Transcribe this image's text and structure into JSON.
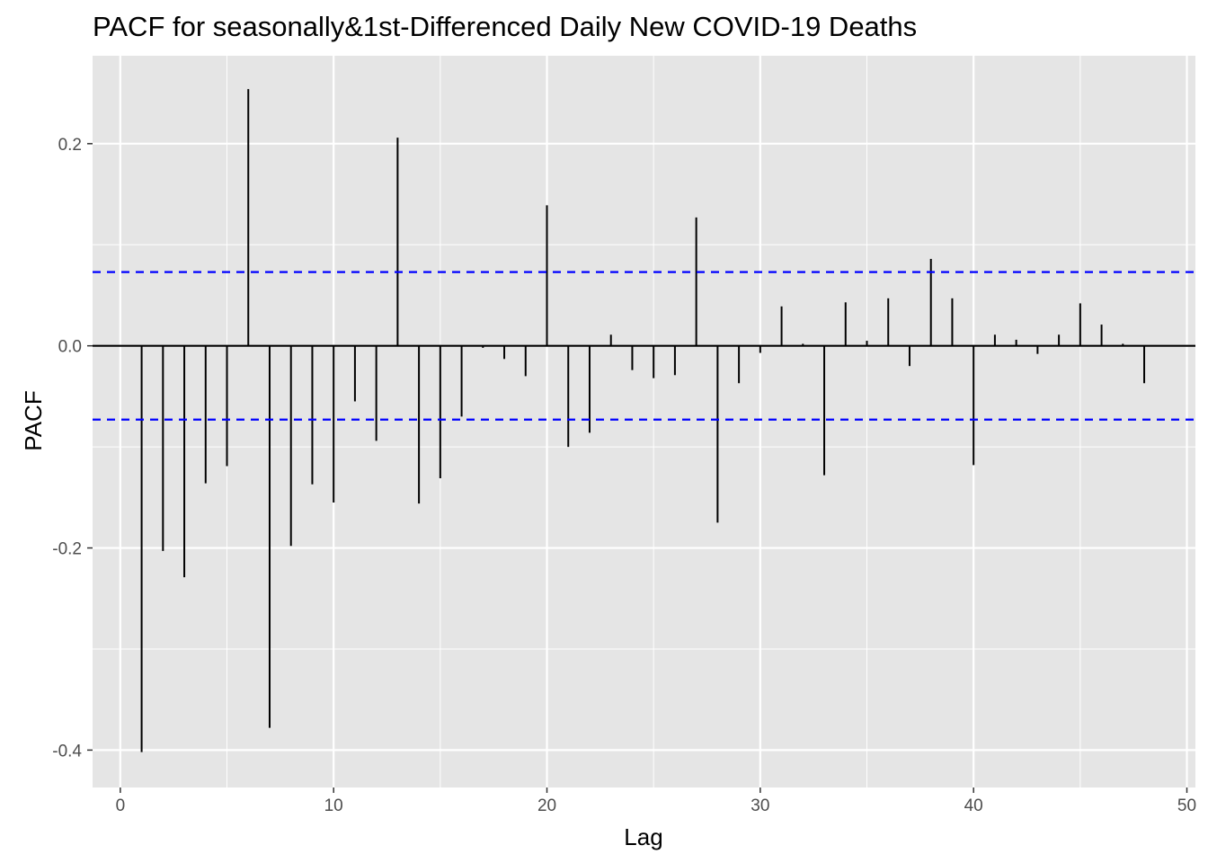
{
  "chart_data": {
    "type": "bar",
    "title": "PACF for seasonally&1st-Differenced Daily New COVID-19 Deaths",
    "xlabel": "Lag",
    "ylabel": "PACF",
    "xlim": [
      -1.3,
      50.4
    ],
    "ylim": [
      -0.437,
      0.287
    ],
    "x_ticks": [
      0,
      10,
      20,
      30,
      40,
      50
    ],
    "x_tick_labels": [
      "0",
      "10",
      "20",
      "30",
      "40",
      "50"
    ],
    "y_ticks": [
      -0.4,
      -0.2,
      0.0,
      0.2
    ],
    "y_tick_labels": [
      "-0.4",
      "-0.2",
      "0.0",
      "0.2"
    ],
    "grid": true,
    "legend": "none",
    "colors": {
      "panel_background": "#e5e5e5",
      "gridline": "#ffffff",
      "bar": "#000000",
      "confidence_line": "#0000ff"
    },
    "confidence_limits": [
      0.073,
      -0.073
    ],
    "lags": [
      1,
      2,
      3,
      4,
      5,
      6,
      7,
      8,
      9,
      10,
      11,
      12,
      13,
      14,
      15,
      16,
      17,
      18,
      19,
      20,
      21,
      22,
      23,
      24,
      25,
      26,
      27,
      28,
      29,
      30,
      31,
      32,
      33,
      34,
      35,
      36,
      37,
      38,
      39,
      40,
      41,
      42,
      43,
      44,
      45,
      46,
      47,
      48
    ],
    "values": [
      -0.402,
      -0.203,
      -0.229,
      -0.136,
      -0.119,
      0.254,
      -0.378,
      -0.198,
      -0.137,
      -0.155,
      -0.055,
      -0.094,
      0.206,
      -0.156,
      -0.131,
      -0.07,
      -0.002,
      -0.013,
      -0.03,
      0.139,
      -0.1,
      -0.086,
      0.011,
      -0.024,
      -0.032,
      -0.029,
      0.127,
      -0.175,
      -0.037,
      -0.007,
      0.039,
      0.002,
      -0.128,
      0.043,
      0.005,
      0.047,
      -0.02,
      0.086,
      0.047,
      -0.118,
      0.011,
      0.006,
      -0.008,
      0.011,
      0.042,
      0.021,
      0.002,
      -0.037
    ]
  }
}
